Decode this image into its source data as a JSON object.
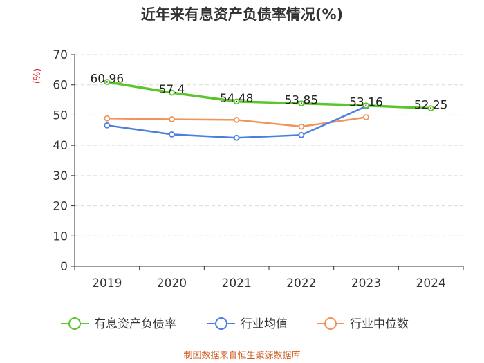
{
  "chart_data": {
    "type": "line",
    "title": "近年来有息资产负债率情况(%)",
    "y_unit": "(%)",
    "categories": [
      "2019",
      "2020",
      "2021",
      "2022",
      "2023",
      "2024"
    ],
    "ylim": [
      0,
      70
    ],
    "yticks": [
      0,
      10,
      20,
      30,
      40,
      50,
      60,
      70
    ],
    "grid": true,
    "legend_position": "bottom",
    "series": [
      {
        "name": "有息资产负债率",
        "color": "#5cc52b",
        "values": [
          60.96,
          57.4,
          54.48,
          53.85,
          53.16,
          52.25
        ],
        "labels": [
          "60.96",
          "57.4",
          "54.48",
          "53.85",
          "53.16",
          "52.25"
        ]
      },
      {
        "name": "行业均值",
        "color": "#4a7fdf",
        "values": [
          46.6,
          43.6,
          42.5,
          43.4,
          52.9,
          null
        ]
      },
      {
        "name": "行业中位数",
        "color": "#f2925c",
        "values": [
          48.9,
          48.6,
          48.4,
          46.2,
          49.3,
          null
        ]
      }
    ]
  },
  "source": "制图数据来自恒生聚源数据库"
}
